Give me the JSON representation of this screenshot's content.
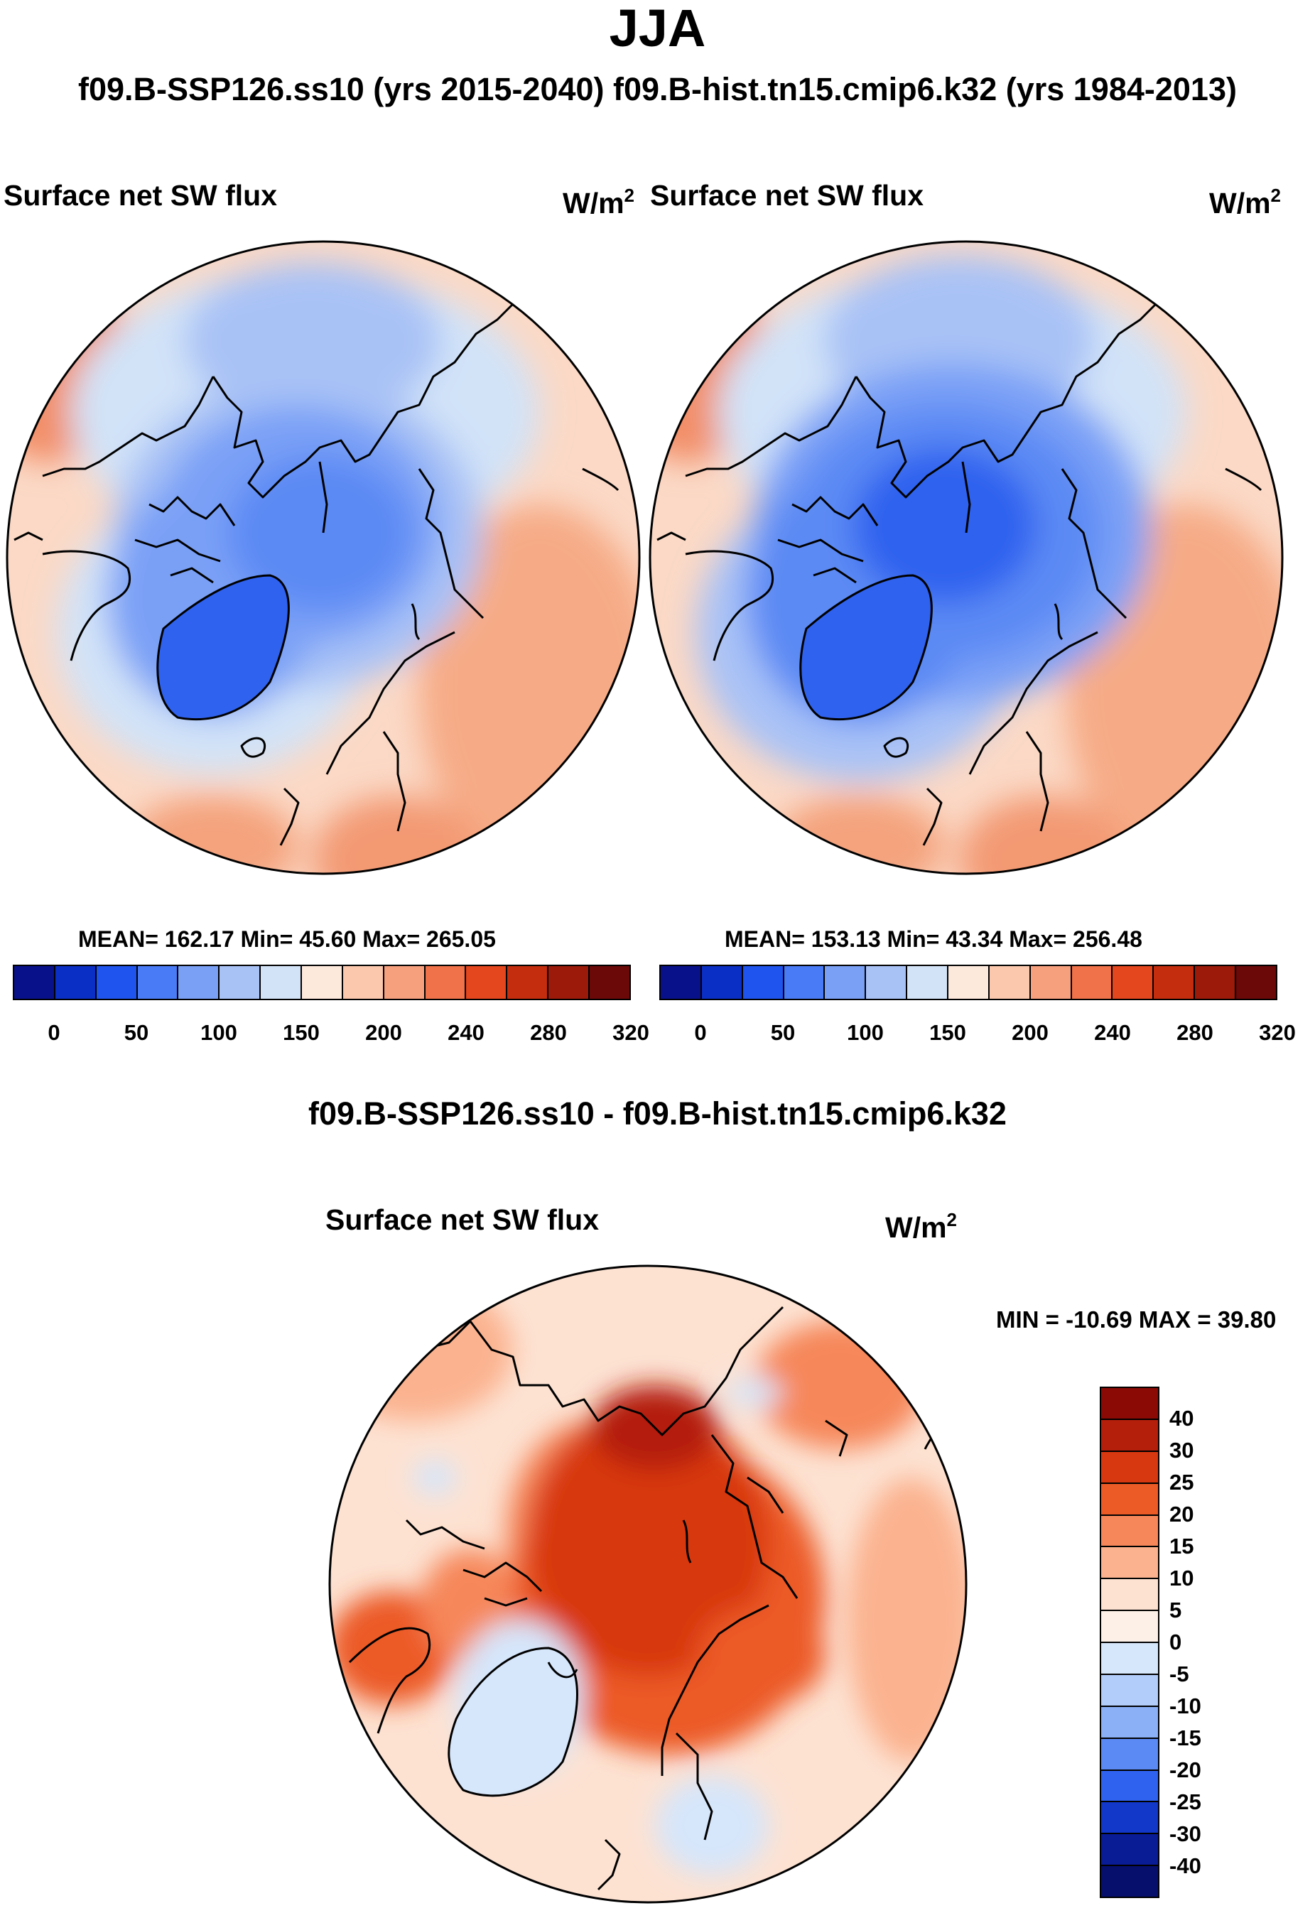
{
  "header": {
    "season": "JJA",
    "runs": "f09.B-SSP126.ss10 (yrs 2015-2040)  f09.B-hist.tn15.cmip6.k32 (yrs 1984-2013)"
  },
  "panels": [
    {
      "variable": "Surface net SW flux",
      "units": "W/m",
      "units_sup": "2",
      "stats": "MEAN= 162.17  Min=  45.60  Max= 265.05"
    },
    {
      "variable": "Surface net SW flux",
      "units": "W/m",
      "units_sup": "2",
      "stats": "MEAN= 153.13  Min=  43.34  Max= 256.48"
    }
  ],
  "difference": {
    "title": "f09.B-SSP126.ss10 - f09.B-hist.tn15.cmip6.k32",
    "variable": "Surface net SW flux",
    "units": "W/m",
    "units_sup": "2",
    "stats": "MIN = -10.69 MAX =  39.80"
  },
  "chart_data": [
    {
      "type": "heatmap",
      "projection": "north polar stereographic",
      "title": "Surface net SW flux",
      "units": "W/m2",
      "mean": 162.17,
      "min": 45.6,
      "max": 265.05,
      "colorbar": {
        "orientation": "horizontal",
        "tick_labels": [
          "0",
          "50",
          "100",
          "150",
          "200",
          "240",
          "280",
          "320"
        ],
        "colors": [
          "#08118a",
          "#0a2fc4",
          "#1f55ee",
          "#4a7bf6",
          "#7aa0f6",
          "#a9c2f6",
          "#d2e3f8",
          "#fde8dc",
          "#fbc8ae",
          "#f6a07e",
          "#f0724a",
          "#e4461d",
          "#c42d0e",
          "#9c1a0a",
          "#6b0808"
        ]
      }
    },
    {
      "type": "heatmap",
      "projection": "north polar stereographic",
      "title": "Surface net SW flux",
      "units": "W/m2",
      "mean": 153.13,
      "min": 43.34,
      "max": 256.48,
      "colorbar": {
        "orientation": "horizontal",
        "tick_labels": [
          "0",
          "50",
          "100",
          "150",
          "200",
          "240",
          "280",
          "320"
        ],
        "colors": [
          "#08118a",
          "#0a2fc4",
          "#1f55ee",
          "#4a7bf6",
          "#7aa0f6",
          "#a9c2f6",
          "#d2e3f8",
          "#fde8dc",
          "#fbc8ae",
          "#f6a07e",
          "#f0724a",
          "#e4461d",
          "#c42d0e",
          "#9c1a0a",
          "#6b0808"
        ]
      }
    },
    {
      "type": "heatmap",
      "projection": "north polar stereographic",
      "title": "Surface net SW flux (difference)",
      "units": "W/m2",
      "min": -10.69,
      "max": 39.8,
      "colorbar": {
        "orientation": "vertical",
        "tick_labels": [
          "40",
          "30",
          "25",
          "20",
          "15",
          "10",
          "5",
          "0",
          "-5",
          "-10",
          "-15",
          "-20",
          "-25",
          "-30",
          "-40"
        ],
        "colors": [
          "#8b0a06",
          "#b41f0b",
          "#d8380f",
          "#ec5a26",
          "#f6875a",
          "#fbb28f",
          "#fde2d2",
          "#fdf1e7",
          "#d6e6fb",
          "#b2cdfa",
          "#8bb0f6",
          "#5c8af4",
          "#2f62ef",
          "#1238c9",
          "#0a1b96",
          "#06106c"
        ]
      }
    }
  ]
}
